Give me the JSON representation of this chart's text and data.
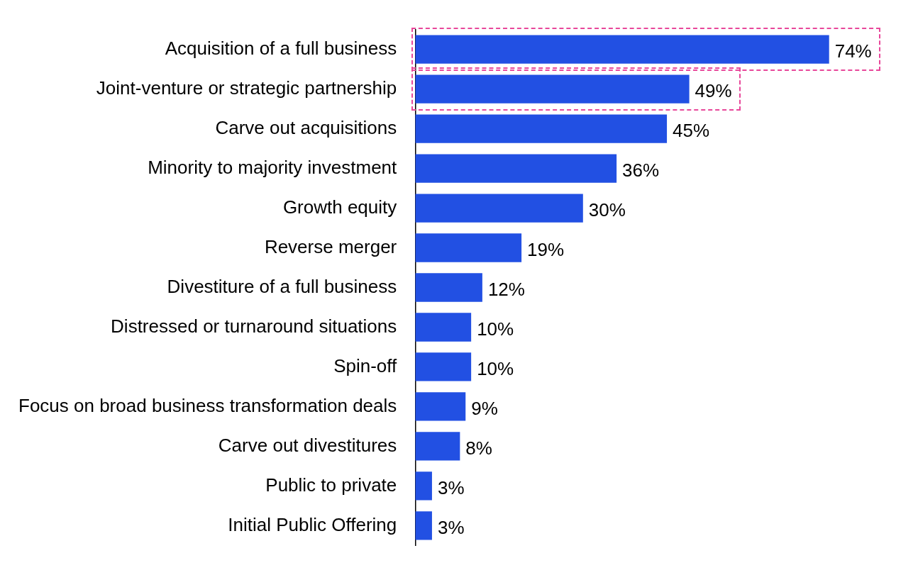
{
  "chart_data": {
    "type": "bar",
    "orientation": "horizontal",
    "color": "#2250e3",
    "categories": [
      "Acquisition of a full business",
      "Joint-venture or strategic partnership",
      "Carve out acquisitions",
      "Minority to majority investment",
      "Growth equity",
      "Reverse merger",
      "Divestiture of a full business",
      "Distressed or turnaround situations",
      "Spin-off",
      "Focus on broad business transformation deals",
      "Carve out divestitures",
      "Public to private",
      "Initial Public Offering"
    ],
    "values": [
      74,
      49,
      45,
      36,
      30,
      19,
      12,
      10,
      10,
      9,
      8,
      3,
      3
    ],
    "value_labels": [
      "74%",
      "49%",
      "45%",
      "36%",
      "30%",
      "19%",
      "12%",
      "10%",
      "10%",
      "9%",
      "8%",
      "3%",
      "3%"
    ],
    "grid": false,
    "legend": false
  }
}
